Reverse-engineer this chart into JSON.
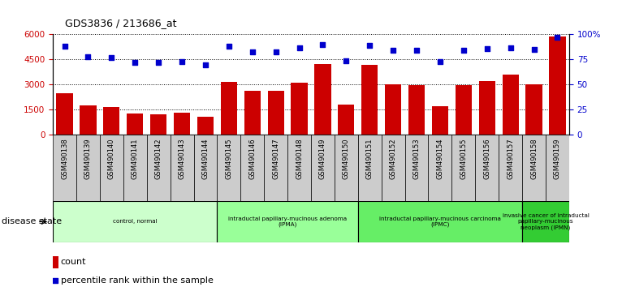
{
  "title": "GDS3836 / 213686_at",
  "samples": [
    "GSM490138",
    "GSM490139",
    "GSM490140",
    "GSM490141",
    "GSM490142",
    "GSM490143",
    "GSM490144",
    "GSM490145",
    "GSM490146",
    "GSM490147",
    "GSM490148",
    "GSM490149",
    "GSM490150",
    "GSM490151",
    "GSM490152",
    "GSM490153",
    "GSM490154",
    "GSM490155",
    "GSM490156",
    "GSM490157",
    "GSM490158",
    "GSM490159"
  ],
  "counts": [
    2500,
    1750,
    1650,
    1300,
    1250,
    1350,
    1100,
    3150,
    2650,
    2650,
    3100,
    4250,
    1800,
    4200,
    3000,
    2950,
    1700,
    2950,
    3200,
    3600,
    3000,
    5900
  ],
  "percentiles": [
    88,
    78,
    77,
    72,
    72,
    73,
    70,
    88,
    83,
    83,
    87,
    90,
    74,
    89,
    84,
    84,
    73,
    84,
    86,
    87,
    85,
    97
  ],
  "ylim_left": [
    0,
    6000
  ],
  "ylim_right": [
    0,
    100
  ],
  "yticks_left": [
    0,
    1500,
    3000,
    4500,
    6000
  ],
  "ytick_labels_left": [
    "0",
    "1500",
    "3000",
    "4500",
    "6000"
  ],
  "yticks_right": [
    0,
    25,
    50,
    75,
    100
  ],
  "ytick_labels_right": [
    "0",
    "25",
    "50",
    "75",
    "100%"
  ],
  "bar_color": "#cc0000",
  "dot_color": "#0000cc",
  "dot_marker": "s",
  "dot_size": 25,
  "bg_color": "#ffffff",
  "tick_bg_color": "#cccccc",
  "groups": [
    {
      "label": "control, normal",
      "start": 0,
      "end": 7,
      "color": "#ccffcc"
    },
    {
      "label": "intraductal papillary-mucinous adenoma\n(IPMA)",
      "start": 7,
      "end": 13,
      "color": "#99ff99"
    },
    {
      "label": "intraductal papillary-mucinous carcinoma\n(IPMC)",
      "start": 13,
      "end": 20,
      "color": "#66ee66"
    },
    {
      "label": "invasive cancer of intraductal\npapillary-mucinous\nneoplasm (IPMN)",
      "start": 20,
      "end": 22,
      "color": "#33cc33"
    }
  ],
  "disease_state_label": "disease state",
  "legend_count_label": "count",
  "legend_pct_label": "percentile rank within the sample",
  "grid_linestyle": ":"
}
